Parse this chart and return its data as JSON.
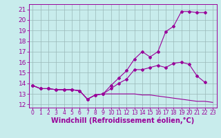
{
  "xlabel": "Windchill (Refroidissement éolien,°C)",
  "background_color": "#c8ecec",
  "line_color": "#990099",
  "xlim": [
    -0.5,
    23.5
  ],
  "ylim": [
    11.7,
    21.5
  ],
  "yticks": [
    12,
    13,
    14,
    15,
    16,
    17,
    18,
    19,
    20,
    21
  ],
  "xticks": [
    0,
    1,
    2,
    3,
    4,
    5,
    6,
    7,
    8,
    9,
    10,
    11,
    12,
    13,
    14,
    15,
    16,
    17,
    18,
    19,
    20,
    21,
    22,
    23
  ],
  "series1_x": [
    0,
    1,
    2,
    3,
    4,
    5,
    6,
    7,
    8,
    9,
    10,
    11,
    12,
    13,
    14,
    15,
    16,
    17,
    18,
    19,
    20,
    21,
    22,
    23
  ],
  "series1_y": [
    13.8,
    13.5,
    13.5,
    13.4,
    13.4,
    13.4,
    13.3,
    12.5,
    12.9,
    13.0,
    13.0,
    13.0,
    13.0,
    13.0,
    12.9,
    12.9,
    12.8,
    12.7,
    12.6,
    12.5,
    12.4,
    12.3,
    12.3,
    12.2
  ],
  "series2_x": [
    0,
    1,
    2,
    3,
    4,
    5,
    6,
    7,
    8,
    9,
    10,
    11,
    12,
    13,
    14,
    15,
    16,
    17,
    18,
    19,
    20,
    21,
    22
  ],
  "series2_y": [
    13.8,
    13.5,
    13.5,
    13.4,
    13.4,
    13.4,
    13.3,
    12.5,
    12.9,
    13.0,
    13.5,
    14.0,
    14.4,
    15.3,
    15.3,
    15.5,
    15.7,
    15.5,
    15.9,
    16.0,
    15.8,
    14.7,
    14.1
  ],
  "series3_x": [
    0,
    1,
    2,
    3,
    4,
    5,
    6,
    7,
    8,
    9,
    10,
    11,
    12,
    13,
    14,
    15,
    16,
    17,
    18,
    19,
    20,
    21,
    22
  ],
  "series3_y": [
    13.8,
    13.5,
    13.5,
    13.4,
    13.4,
    13.4,
    13.3,
    12.5,
    12.9,
    13.0,
    13.8,
    14.5,
    15.2,
    16.3,
    17.0,
    16.5,
    17.0,
    18.9,
    19.4,
    20.8,
    20.8,
    20.7,
    20.7
  ],
  "grid_color": "#9ab8b8",
  "tick_fontsize": 6.5,
  "label_fontsize": 7.0
}
